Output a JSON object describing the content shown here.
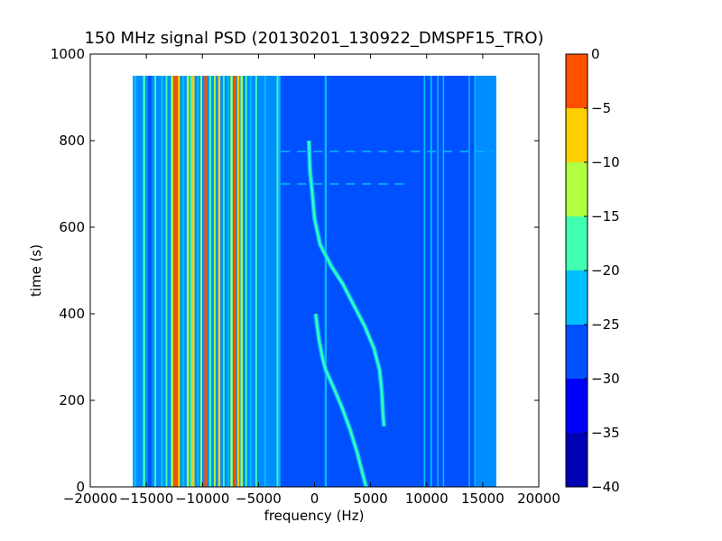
{
  "chart_data": {
    "type": "heatmap",
    "title": "150 MHz signal PSD (20130201_130922_DMSPF15_TRO)",
    "xlabel": "frequency (Hz)",
    "ylabel": "time (s)",
    "xlim": [
      -20000,
      20000
    ],
    "ylim": [
      0,
      1000
    ],
    "x_ticks": [
      -20000,
      -15000,
      -10000,
      -5000,
      0,
      5000,
      10000,
      15000,
      20000
    ],
    "x_tick_labels": [
      "−20000",
      "−15000",
      "−10000",
      "−5000",
      "0",
      "5000",
      "10000",
      "15000",
      "20000"
    ],
    "y_ticks": [
      0,
      200,
      400,
      600,
      800,
      1000
    ],
    "y_tick_labels": [
      "0",
      "200",
      "400",
      "600",
      "800",
      "1000"
    ],
    "data_extent": {
      "x": [
        -16200,
        16200
      ],
      "y": [
        0,
        950
      ]
    },
    "background_level": -27.5,
    "colorbar": {
      "levels": [
        -40,
        -35,
        -30,
        -25,
        -20,
        -15,
        -10,
        -5,
        0
      ],
      "tick_labels": [
        "−40",
        "−35",
        "−30",
        "−25",
        "−20",
        "−15",
        "−10",
        "−5",
        "0"
      ],
      "colors": [
        "#0000b4",
        "#0000ff",
        "#0050ff",
        "#00bfff",
        "#40ffb0",
        "#b0ff40",
        "#ffcf00",
        "#ff5000",
        "#c00000"
      ]
    },
    "left_band": {
      "x": [
        -16200,
        -3100
      ],
      "level": -22.5
    },
    "right_band": {
      "x": [
        14300,
        16200
      ],
      "level": -22.5
    },
    "vertical_lines": [
      {
        "x": -16000,
        "level": -22.5,
        "width": 200
      },
      {
        "x": -15200,
        "level": -17.5,
        "width": 200
      },
      {
        "x": -14700,
        "level": -27.5,
        "width": 300
      },
      {
        "x": -14200,
        "level": -17.5,
        "width": 150
      },
      {
        "x": -13600,
        "level": -22.5,
        "width": 200
      },
      {
        "x": -13200,
        "level": -17.5,
        "width": 150
      },
      {
        "x": -12700,
        "level": -12.5,
        "width": 200
      },
      {
        "x": -12400,
        "level": -2.5,
        "width": 250
      },
      {
        "x": -12100,
        "level": -7.5,
        "width": 200
      },
      {
        "x": -11700,
        "level": -22.5,
        "width": 200
      },
      {
        "x": -11300,
        "level": -12.5,
        "width": 200
      },
      {
        "x": -11000,
        "level": -17.5,
        "width": 200
      },
      {
        "x": -10800,
        "level": -7.5,
        "width": 200
      },
      {
        "x": -10400,
        "level": -22.5,
        "width": 150
      },
      {
        "x": -10100,
        "level": -12.5,
        "width": 150
      },
      {
        "x": -9700,
        "level": -2.5,
        "width": 250
      },
      {
        "x": -9300,
        "level": -17.5,
        "width": 200
      },
      {
        "x": -8900,
        "level": -12.5,
        "width": 150
      },
      {
        "x": -8500,
        "level": -7.5,
        "width": 200
      },
      {
        "x": -8100,
        "level": -17.5,
        "width": 150
      },
      {
        "x": -7700,
        "level": -22.5,
        "width": 150
      },
      {
        "x": -7400,
        "level": -12.5,
        "width": 200
      },
      {
        "x": -7100,
        "level": -2.5,
        "width": 200
      },
      {
        "x": -6800,
        "level": -7.5,
        "width": 200
      },
      {
        "x": -6500,
        "level": -12.5,
        "width": 200
      },
      {
        "x": -6100,
        "level": -17.5,
        "width": 150
      },
      {
        "x": -5700,
        "level": -22.5,
        "width": 150
      },
      {
        "x": -5200,
        "level": -17.5,
        "width": 150
      },
      {
        "x": -4400,
        "level": -22.5,
        "width": 150
      },
      {
        "x": -3300,
        "level": -17.5,
        "width": 150
      },
      {
        "x": -3100,
        "level": -22.5,
        "width": 120
      },
      {
        "x": 1000,
        "level": -22.5,
        "width": 180
      },
      {
        "x": 9800,
        "level": -22.5,
        "width": 120
      },
      {
        "x": 10400,
        "level": -22.5,
        "width": 150
      },
      {
        "x": 11000,
        "level": -22.5,
        "width": 120
      },
      {
        "x": 11500,
        "level": -22.5,
        "width": 120
      },
      {
        "x": 13800,
        "level": -22.5,
        "width": 120
      },
      {
        "x": 14300,
        "level": -22.5,
        "width": 120
      }
    ],
    "traces": [
      {
        "level": -17.5,
        "points": [
          [
            -500,
            800
          ],
          [
            -400,
            730
          ],
          [
            -200,
            680
          ],
          [
            0,
            620
          ],
          [
            500,
            560
          ],
          [
            1500,
            510
          ],
          [
            2500,
            470
          ],
          [
            3500,
            420
          ],
          [
            4500,
            370
          ],
          [
            5300,
            320
          ],
          [
            5800,
            270
          ],
          [
            6000,
            220
          ],
          [
            6100,
            170
          ],
          [
            6200,
            140
          ]
        ]
      },
      {
        "level": -17.5,
        "points": [
          [
            100,
            400
          ],
          [
            400,
            340
          ],
          [
            700,
            300
          ],
          [
            1000,
            270
          ],
          [
            1700,
            230
          ],
          [
            2500,
            180
          ],
          [
            3200,
            130
          ],
          [
            3800,
            80
          ],
          [
            4300,
            30
          ],
          [
            4600,
            0
          ]
        ]
      }
    ],
    "horizontal_streaks": [
      {
        "y": 775,
        "x": [
          -3000,
          16000
        ]
      },
      {
        "y": 700,
        "x": [
          -3000,
          8000
        ]
      }
    ]
  }
}
